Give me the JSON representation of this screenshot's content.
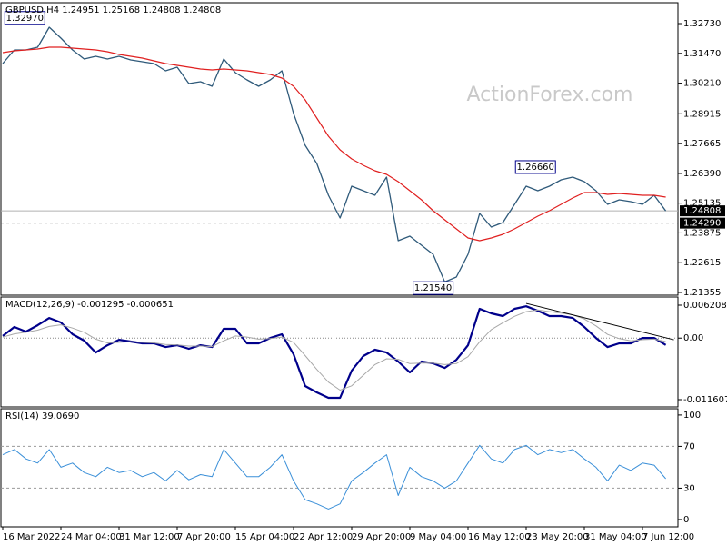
{
  "chart_data": [
    {
      "type": "line",
      "title": "GBPUSD,H4  1.24951 1.25168 1.24808 1.24808",
      "watermark": "ActionForex.com",
      "categories": [
        "16 Mar 2022",
        null,
        null,
        null,
        null,
        "24 Mar 04:00",
        null,
        null,
        null,
        null,
        "31 Mar 12:00",
        null,
        null,
        null,
        null,
        "7 Apr 20:00",
        null,
        null,
        null,
        null,
        "15 Apr 04:00",
        null,
        null,
        null,
        null,
        "22 Apr 12:00",
        null,
        null,
        null,
        null,
        "29 Apr 20:00",
        null,
        null,
        null,
        null,
        "9 May 04:00",
        null,
        null,
        null,
        null,
        "16 May 12:00",
        null,
        null,
        null,
        null,
        "23 May 20:00",
        null,
        null,
        null,
        null,
        "31 May 04:00",
        null,
        null,
        null,
        null,
        "7 Jun 12:00",
        null,
        null
      ],
      "series": [
        {
          "color": "#2f5a7a",
          "width": 1.3,
          "values": [
            1.31039,
            1.31615,
            1.31615,
            1.31731,
            1.32576,
            1.32115,
            1.31615,
            1.31231,
            1.31346,
            1.31231,
            1.31346,
            1.31193,
            1.31116,
            1.31039,
            1.30732,
            1.30885,
            1.30193,
            1.3027,
            1.30078,
            1.31231,
            1.30655,
            1.30347,
            1.30078,
            1.30347,
            1.30732,
            1.28925,
            1.2758,
            1.26812,
            1.25466,
            1.24506,
            1.25851,
            1.25659,
            1.25466,
            1.26235,
            1.23545,
            1.23737,
            1.23353,
            1.22968,
            1.218,
            1.22008,
            1.22968,
            1.24698,
            1.24121,
            1.24313,
            1.25082,
            1.25851,
            1.25659,
            1.25851,
            1.2612,
            1.26235,
            1.26043,
            1.25659,
            1.25082,
            1.25274,
            1.25197,
            1.25082,
            1.25466,
            1.24808
          ]
        },
        {
          "color": "#e02020",
          "width": 1.2,
          "values": [
            1.315,
            1.31577,
            1.31615,
            1.31654,
            1.31731,
            1.31731,
            1.31692,
            1.31654,
            1.31615,
            1.31539,
            1.31423,
            1.31346,
            1.3127,
            1.31154,
            1.31039,
            1.30962,
            1.30885,
            1.30808,
            1.30769,
            1.30808,
            1.30769,
            1.30732,
            1.30655,
            1.30578,
            1.30424,
            1.30078,
            1.29502,
            1.28733,
            1.27965,
            1.27388,
            1.27004,
            1.26735,
            1.26504,
            1.2635,
            1.26043,
            1.25659,
            1.25274,
            1.24813,
            1.24429,
            1.24044,
            1.2366,
            1.23545,
            1.2366,
            1.23814,
            1.24044,
            1.24313,
            1.24583,
            1.24813,
            1.25082,
            1.25351,
            1.25582,
            1.25582,
            1.25505,
            1.25543,
            1.25505,
            1.25466,
            1.25466,
            1.2539
          ]
        }
      ],
      "ylim": [
        1.2124,
        1.33614
      ],
      "yticks": [
        {
          "value": 1.3273,
          "label": "1.32730"
        },
        {
          "value": 1.3147,
          "label": "1.31470"
        },
        {
          "value": 1.3021,
          "label": "1.30210"
        },
        1.28915,
        1.27665,
        {
          "value": 1.2639,
          "label": "1.26390"
        },
        1.25135,
        1.23875,
        1.22615,
        1.21355
      ],
      "last_price": 1.24808,
      "level": {
        "value": 1.2429,
        "label": "1.24290"
      },
      "annotations": [
        {
          "x": 1.9,
          "value": 1.3297,
          "label": "1.32970"
        },
        {
          "x": 45.8,
          "value": 1.2666,
          "label": "1.26660"
        },
        {
          "x": 37,
          "value": 1.2154,
          "label": "1.21540"
        }
      ]
    },
    {
      "type": "line",
      "title": "MACD(12,26,9) -0.001295 -0.000651",
      "series": [
        {
          "color": "#00008b",
          "width": 2.2,
          "values": [
            0.0004,
            0.00209,
            0.00123,
            0.00243,
            0.0038,
            0.00295,
            0.00072,
            -0.00048,
            -0.00271,
            -0.00134,
            -0.00031,
            -0.00065,
            -0.00099,
            -0.00099,
            -0.00168,
            -0.00134,
            -0.00202,
            -0.00134,
            -0.00168,
            0.00175,
            0.00175,
            -0.00099,
            -0.00099,
            3e-05,
            0.00072,
            -0.00305,
            -0.00904,
            -0.01024,
            -0.01127,
            -0.01127,
            -0.00613,
            -0.00339,
            -0.00219,
            -0.00271,
            -0.00442,
            -0.00647,
            -0.00442,
            -0.00476,
            -0.00562,
            -0.00408,
            -0.00134,
            0.00552,
            0.00466,
            0.00415,
            0.00552,
            0.006,
            0.00517,
            0.00415,
            0.00415,
            0.0038,
            0.00209,
            3e-05,
            -0.00168,
            -0.00099,
            -0.00099,
            3e-05,
            3e-05,
            -0.0013
          ]
        },
        {
          "color": "#a8a8a8",
          "width": 1,
          "values": [
            0.0002,
            0.0008,
            0.0011,
            0.0015,
            0.0022,
            0.0025,
            0.0019,
            0.0011,
            -0.0002,
            -0.0009,
            -0.0008,
            -0.0007,
            -0.0008,
            -0.0009,
            -0.0012,
            -0.0013,
            -0.0015,
            -0.0015,
            -0.0016,
            -0.0005,
            0.0004,
            0.0002,
            -0.0002,
            -0.0001,
            0.0002,
            -0.0008,
            -0.0033,
            -0.0059,
            -0.0083,
            -0.0098,
            -0.009,
            -0.007,
            -0.005,
            -0.0039,
            -0.004,
            -0.0048,
            -0.0047,
            -0.0047,
            -0.005,
            -0.0048,
            -0.0035,
            -0.0007,
            0.0016,
            0.0029,
            0.0041,
            0.005,
            0.0053,
            0.005,
            0.0047,
            0.0044,
            0.0036,
            0.0023,
            0.0007,
            -0.0001,
            -0.0005,
            -0.0003,
            -0.0002,
            -0.00065
          ]
        }
      ],
      "ylim": [
        -0.012977,
        0.00775
      ],
      "yticks": [
        0.006208,
        {
          "value": 0,
          "label": "0.00"
        },
        -0.011607
      ],
      "zero_line": true,
      "trendline": {
        "x": [
          45,
          57.7
        ],
        "y": [
          0.00654,
          -0.00031
        ]
      }
    },
    {
      "type": "line",
      "title": "RSI(14) 39.0690",
      "series": [
        {
          "color": "#3a8fd8",
          "width": 1,
          "values": [
            62,
            67,
            58,
            54,
            67,
            50,
            54,
            45,
            41,
            50,
            45,
            47,
            41,
            45,
            37,
            47,
            38,
            43,
            41,
            67,
            54,
            41,
            41,
            50,
            62,
            37,
            19,
            15,
            10,
            15,
            37,
            45,
            54,
            62,
            23,
            50,
            41,
            37,
            30,
            37,
            54,
            71,
            58,
            54,
            67,
            71,
            62,
            67,
            64,
            67,
            58,
            50,
            37,
            52,
            47,
            54,
            52,
            39.069
          ]
        }
      ],
      "ylim": [
        -7,
        106
      ],
      "yticks": [
        100,
        70,
        30,
        0
      ],
      "dashed_levels": [
        70,
        30
      ]
    }
  ]
}
